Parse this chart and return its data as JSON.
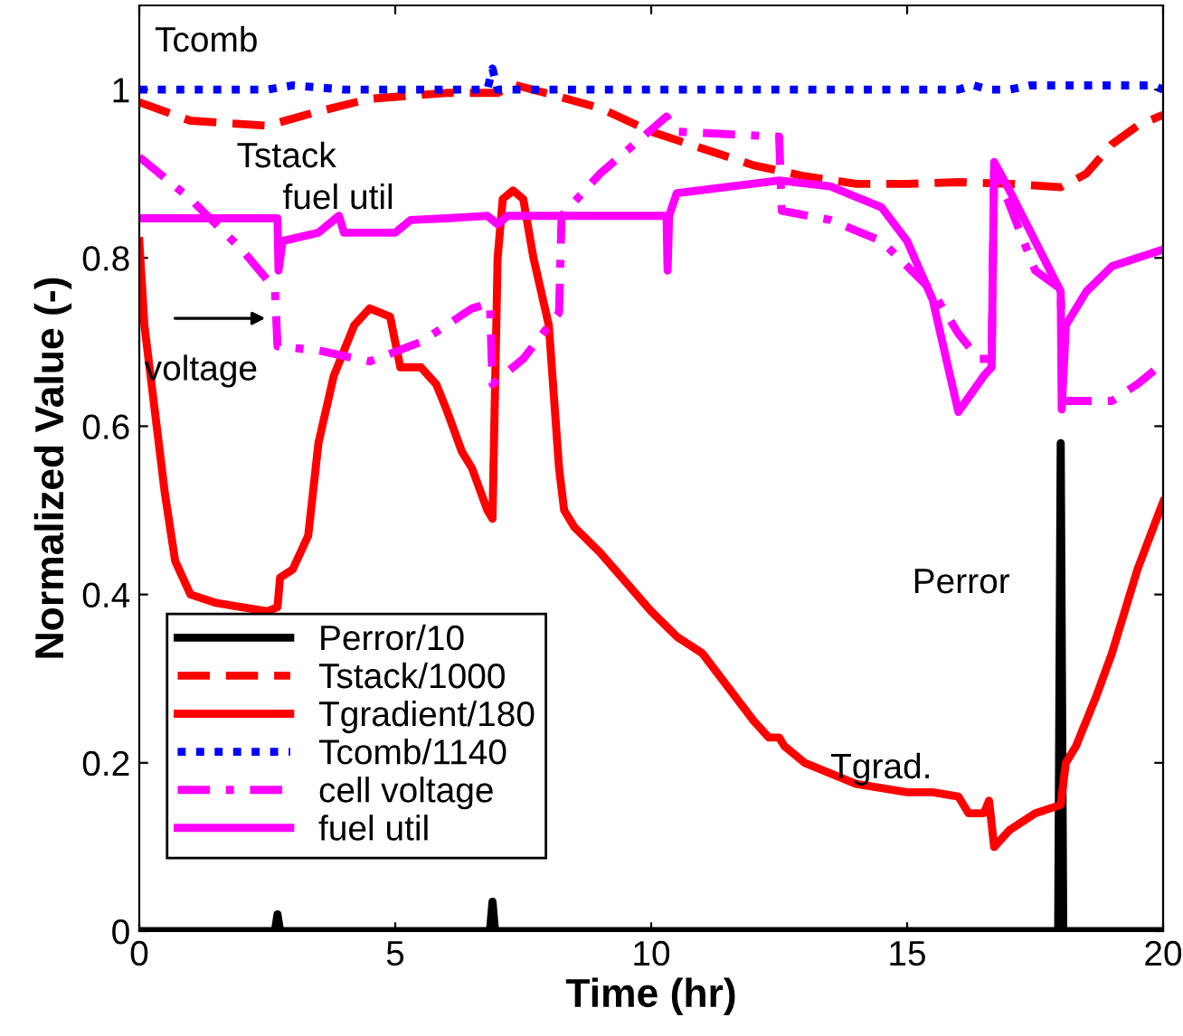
{
  "chart_data": {
    "type": "line",
    "xlabel": "Time (hr)",
    "ylabel": "Normalized Value (-)",
    "xlim": [
      0,
      20
    ],
    "ylim": [
      0,
      1.1
    ],
    "xticks": [
      0,
      5,
      10,
      15,
      20
    ],
    "yticks": [
      0,
      0.2,
      0.4,
      0.6,
      0.8,
      1
    ],
    "grid": false,
    "legend": "bottom left",
    "marker": "none",
    "series": [
      {
        "name": "Perror/10",
        "color": "#000000",
        "line_style": "solid",
        "x": [
          0,
          2.65,
          2.7,
          2.75,
          6.85,
          6.9,
          6.95,
          17.95,
          18.0,
          18.05,
          20
        ],
        "values": [
          0,
          0,
          0.02,
          0,
          0,
          0.035,
          0,
          0,
          0.58,
          0,
          0
        ]
      },
      {
        "name": "Tstack/1000",
        "color": "#ff0000",
        "line_style": "dashed",
        "x": [
          0,
          1,
          2.5,
          3.5,
          4.5,
          6,
          7,
          7.3,
          8,
          9,
          10,
          11,
          12,
          13,
          14,
          15,
          16,
          17,
          18,
          18.5,
          19,
          19.5,
          20
        ],
        "values": [
          0.985,
          0.963,
          0.957,
          0.974,
          0.989,
          0.996,
          0.996,
          1.006,
          0.995,
          0.978,
          0.95,
          0.93,
          0.91,
          0.897,
          0.888,
          0.888,
          0.89,
          0.888,
          0.884,
          0.9,
          0.935,
          0.957,
          0.97
        ]
      },
      {
        "name": "Tgradient/180",
        "color": "#ff0000",
        "line_style": "solid",
        "x": [
          0,
          0.1,
          0.3,
          0.5,
          0.7,
          1.0,
          1.5,
          2,
          2.5,
          2.7,
          2.75,
          3,
          3.3,
          3.5,
          3.8,
          4.2,
          4.5,
          4.9,
          5.0,
          5.1,
          5.5,
          5.8,
          6.0,
          6.3,
          6.5,
          6.8,
          6.9,
          7.0,
          7.1,
          7.3,
          7.5,
          7.7,
          8.0,
          8.2,
          8.3,
          8.5,
          9,
          10,
          10.5,
          11,
          11.5,
          12,
          12.3,
          12.5,
          12.6,
          13,
          14,
          15,
          15.5,
          16,
          16.2,
          16.5,
          16.6,
          16.7,
          17,
          17.5,
          18,
          18.1,
          18.3,
          18.7,
          19,
          19.5,
          20
        ],
        "values": [
          0.82,
          0.72,
          0.62,
          0.52,
          0.44,
          0.4,
          0.39,
          0.385,
          0.38,
          0.385,
          0.42,
          0.43,
          0.47,
          0.58,
          0.66,
          0.72,
          0.74,
          0.73,
          0.7,
          0.67,
          0.67,
          0.65,
          0.62,
          0.57,
          0.55,
          0.5,
          0.49,
          0.8,
          0.87,
          0.88,
          0.87,
          0.8,
          0.72,
          0.55,
          0.5,
          0.48,
          0.45,
          0.38,
          0.35,
          0.33,
          0.29,
          0.25,
          0.23,
          0.23,
          0.22,
          0.2,
          0.175,
          0.165,
          0.165,
          0.16,
          0.14,
          0.14,
          0.155,
          0.1,
          0.12,
          0.14,
          0.15,
          0.2,
          0.22,
          0.28,
          0.33,
          0.43,
          0.51
        ]
      },
      {
        "name": "Tcomb/1140",
        "color": "#0000ff",
        "line_style": "dotted",
        "x": [
          0,
          2.5,
          3,
          4,
          6.8,
          6.9,
          7,
          16,
          16.3,
          16.6,
          17,
          17.4,
          19.8,
          20
        ],
        "values": [
          1.0,
          1.0,
          1.005,
          1.0,
          1.0,
          1.025,
          1.0,
          1.0,
          1.005,
          1.0,
          1.0,
          1.005,
          1.005,
          1.0
        ]
      },
      {
        "name": "cell voltage",
        "color": "#ff00ff",
        "line_style": "dashdot",
        "x": [
          0,
          1,
          2,
          2.65,
          2.7,
          3.5,
          4.5,
          5.5,
          6.5,
          6.85,
          6.9,
          7.5,
          8.2,
          8.25,
          9,
          10.3,
          10.5,
          12.5,
          12.55,
          13.5,
          14.5,
          15.5,
          16,
          16.4,
          16.65,
          16.7,
          17.5,
          18,
          18.05,
          18.5,
          19,
          19.5,
          20
        ],
        "values": [
          0.92,
          0.87,
          0.81,
          0.763,
          0.695,
          0.69,
          0.677,
          0.7,
          0.74,
          0.746,
          0.65,
          0.68,
          0.735,
          0.85,
          0.9,
          0.968,
          0.95,
          0.944,
          0.856,
          0.845,
          0.82,
          0.76,
          0.71,
          0.68,
          0.68,
          0.91,
          0.785,
          0.763,
          0.63,
          0.63,
          0.63,
          0.65,
          0.675
        ]
      },
      {
        "name": "fuel util",
        "color": "#ff00ff",
        "line_style": "solid",
        "x": [
          0,
          2.7,
          2.72,
          2.8,
          3.5,
          3.7,
          3.9,
          4.0,
          5,
          5.3,
          6,
          6.8,
          7.0,
          7.2,
          10.3,
          10.32,
          10.35,
          10.5,
          12.5,
          13.5,
          14.5,
          15,
          15.5,
          16,
          16.5,
          16.65,
          16.7,
          17.0,
          17.5,
          18.0,
          18.02,
          18.1,
          18.5,
          19,
          19.5,
          20
        ],
        "values": [
          0.847,
          0.847,
          0.785,
          0.82,
          0.83,
          0.84,
          0.85,
          0.83,
          0.83,
          0.845,
          0.847,
          0.85,
          0.84,
          0.85,
          0.85,
          0.785,
          0.85,
          0.877,
          0.892,
          0.885,
          0.86,
          0.82,
          0.75,
          0.617,
          0.66,
          0.67,
          0.914,
          0.88,
          0.82,
          0.76,
          0.62,
          0.72,
          0.76,
          0.79,
          0.8,
          0.81
        ]
      }
    ],
    "annotations": [
      "Tcomb",
      "Tstack",
      "fuel util",
      "voltage",
      "Perror",
      "Tgrad."
    ]
  }
}
